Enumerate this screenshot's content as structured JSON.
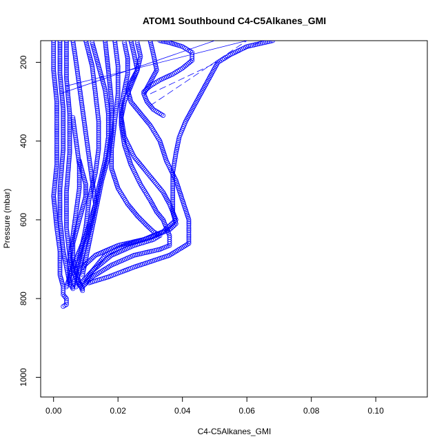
{
  "chart_data": {
    "type": "scatter",
    "title": "ATOM1 Southbound C4-C5Alkanes_GMI",
    "xlabel": "C4-C5Alkanes_GMI",
    "ylabel": "Pressure (mbar)",
    "xlim": [
      -0.004,
      0.116
    ],
    "ylim": [
      1050,
      145
    ],
    "y_reversed": true,
    "grid": false,
    "legend": "none",
    "xticks": [
      0.0,
      0.02,
      0.04,
      0.06,
      0.08,
      0.1
    ],
    "xtick_labels": [
      "0.00",
      "0.02",
      "0.04",
      "0.06",
      "0.08",
      "0.10"
    ],
    "yticks": [
      200,
      400,
      600,
      800,
      1000
    ],
    "ytick_labels": [
      "200",
      "400",
      "600",
      "800",
      "1000"
    ],
    "marker": "open-circle",
    "color": "#0000ff",
    "series": [
      {
        "x": [
          0.0,
          0.0,
          0.001,
          0.001,
          0.001,
          0.0,
          0.001,
          0.002,
          0.002,
          0.003,
          0.003,
          0.004,
          0.004,
          0.003
        ],
        "y": [
          145,
          220,
          300,
          380,
          460,
          540,
          620,
          680,
          740,
          770,
          790,
          800,
          815,
          820
        ]
      },
      {
        "x": [
          0.002,
          0.002,
          0.003,
          0.003,
          0.002,
          0.002,
          0.003,
          0.004,
          0.005,
          0.006
        ],
        "y": [
          145,
          230,
          320,
          420,
          520,
          600,
          680,
          720,
          760,
          775
        ]
      },
      {
        "x": [
          0.004,
          0.004,
          0.005,
          0.005,
          0.004,
          0.004,
          0.005,
          0.006,
          0.008,
          0.009
        ],
        "y": [
          145,
          240,
          330,
          430,
          530,
          620,
          690,
          730,
          765,
          775
        ]
      },
      {
        "x": [
          0.006,
          0.007,
          0.008,
          0.009,
          0.01,
          0.011,
          0.012,
          0.013,
          0.01,
          0.006,
          0.004
        ],
        "y": [
          145,
          200,
          260,
          320,
          380,
          440,
          500,
          560,
          640,
          720,
          770
        ]
      },
      {
        "x": [
          0.01,
          0.012,
          0.013,
          0.014,
          0.014,
          0.013,
          0.011,
          0.01,
          0.008,
          0.006
        ],
        "y": [
          145,
          210,
          280,
          350,
          420,
          480,
          550,
          620,
          700,
          770
        ]
      },
      {
        "x": [
          0.012,
          0.014,
          0.016,
          0.017,
          0.017,
          0.016,
          0.014,
          0.012,
          0.01,
          0.008,
          0.007
        ],
        "y": [
          150,
          210,
          270,
          330,
          390,
          450,
          520,
          600,
          660,
          720,
          770
        ]
      },
      {
        "x": [
          0.016,
          0.017,
          0.018,
          0.018,
          0.017,
          0.015,
          0.013,
          0.011,
          0.009
        ],
        "y": [
          145,
          220,
          300,
          380,
          440,
          500,
          580,
          660,
          740
        ]
      },
      {
        "x": [
          0.019,
          0.02,
          0.02,
          0.019,
          0.018,
          0.018,
          0.02,
          0.023,
          0.026,
          0.029,
          0.031,
          0.033,
          0.031,
          0.025,
          0.018,
          0.012,
          0.008
        ],
        "y": [
          145,
          210,
          280,
          350,
          420,
          470,
          520,
          560,
          590,
          615,
          630,
          640,
          650,
          665,
          690,
          730,
          765
        ]
      },
      {
        "x": [
          0.022,
          0.023,
          0.023,
          0.022,
          0.021,
          0.021,
          0.022,
          0.024,
          0.027,
          0.03,
          0.032,
          0.034,
          0.035,
          0.036,
          0.036,
          0.033,
          0.025,
          0.018,
          0.012,
          0.009
        ],
        "y": [
          150,
          190,
          230,
          270,
          310,
          360,
          410,
          460,
          510,
          550,
          580,
          600,
          620,
          640,
          665,
          675,
          690,
          715,
          745,
          770
        ]
      },
      {
        "x": [
          0.024,
          0.025,
          0.026,
          0.024,
          0.022,
          0.021,
          0.022,
          0.025,
          0.03,
          0.034,
          0.036,
          0.038,
          0.034,
          0.028,
          0.02,
          0.013,
          0.009
        ],
        "y": [
          145,
          180,
          220,
          260,
          300,
          340,
          390,
          440,
          490,
          530,
          560,
          600,
          630,
          650,
          665,
          690,
          720
        ]
      },
      {
        "x": [
          0.026,
          0.027,
          0.026,
          0.024,
          0.023,
          0.024,
          0.027,
          0.03,
          0.033,
          0.035,
          0.038,
          0.04,
          0.042,
          0.042,
          0.036,
          0.025,
          0.017,
          0.011
        ],
        "y": [
          150,
          185,
          220,
          250,
          270,
          300,
          330,
          360,
          400,
          450,
          500,
          550,
          600,
          660,
          690,
          720,
          745,
          760
        ]
      },
      {
        "x": [
          0.068,
          0.06,
          0.055,
          0.051,
          0.049,
          0.047,
          0.045,
          0.043,
          0.041,
          0.039,
          0.038,
          0.037,
          0.037,
          0.037,
          0.038,
          0.036,
          0.03,
          0.022,
          0.016,
          0.012,
          0.01
        ],
        "y": [
          145,
          160,
          180,
          200,
          230,
          260,
          290,
          320,
          350,
          390,
          430,
          480,
          530,
          580,
          610,
          625,
          645,
          665,
          690,
          730,
          760
        ]
      },
      {
        "x": [
          0.03,
          0.031,
          0.032,
          0.03,
          0.028,
          0.029,
          0.031,
          0.033,
          0.034
        ],
        "y": [
          145,
          180,
          220,
          250,
          280,
          300,
          320,
          330,
          335
        ]
      },
      {
        "x": [
          0.033,
          0.036,
          0.04,
          0.043,
          0.043,
          0.04,
          0.037,
          0.033,
          0.03,
          0.028
        ],
        "y": [
          145,
          150,
          160,
          175,
          195,
          215,
          230,
          245,
          260,
          275
        ]
      },
      {
        "x": [
          0.008,
          0.009,
          0.01,
          0.01,
          0.009,
          0.008,
          0.007,
          0.006,
          0.006,
          0.007,
          0.008,
          0.009
        ],
        "y": [
          450,
          480,
          510,
          540,
          570,
          600,
          630,
          660,
          700,
          730,
          760,
          780
        ]
      },
      {
        "x": [
          0.006,
          0.007,
          0.008,
          0.008,
          0.007,
          0.006,
          0.005,
          0.005
        ],
        "y": [
          340,
          400,
          460,
          520,
          580,
          640,
          700,
          760
        ]
      }
    ],
    "line_segments": [
      {
        "style": "solid",
        "x": [
          0.002,
          0.05
        ],
        "y": [
          280,
          145
        ]
      },
      {
        "style": "solid",
        "x": [
          0.004,
          0.06
        ],
        "y": [
          260,
          145
        ]
      },
      {
        "style": "dashed",
        "x": [
          0.03,
          0.065
        ],
        "y": [
          280,
          145
        ]
      },
      {
        "style": "dashed",
        "x": [
          0.03,
          0.06
        ],
        "y": [
          310,
          145
        ]
      }
    ]
  }
}
